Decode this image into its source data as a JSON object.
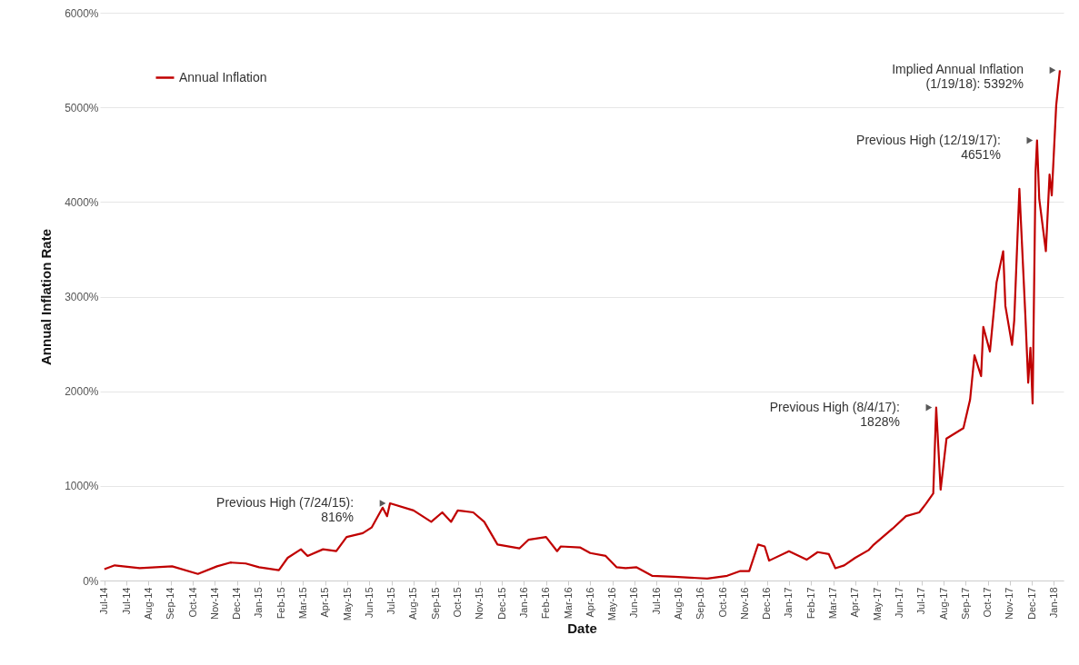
{
  "chart_data": {
    "type": "line",
    "xlabel": "Date",
    "ylabel": "Annual Inflation Rate",
    "x": [
      "2014-07-01",
      "2014-07-15",
      "2014-08-18",
      "2014-10-01",
      "2014-11-05",
      "2014-12-01",
      "2014-12-19",
      "2015-01-09",
      "2015-01-27",
      "2015-02-23",
      "2015-03-07",
      "2015-03-25",
      "2015-04-03",
      "2015-04-24",
      "2015-05-12",
      "2015-05-26",
      "2015-06-17",
      "2015-06-29",
      "2015-07-14",
      "2015-07-20",
      "2015-07-24",
      "2015-08-25",
      "2015-09-18",
      "2015-10-03",
      "2015-10-15",
      "2015-10-24",
      "2015-11-14",
      "2015-11-29",
      "2015-12-17",
      "2016-01-16",
      "2016-01-28",
      "2016-02-21",
      "2016-03-07",
      "2016-03-12",
      "2016-04-07",
      "2016-04-21",
      "2016-05-12",
      "2016-05-27",
      "2016-06-08",
      "2016-06-23",
      "2016-07-14",
      "2016-08-13",
      "2016-09-27",
      "2016-10-24",
      "2016-11-11",
      "2016-11-23",
      "2016-12-05",
      "2016-12-14",
      "2016-12-20",
      "2017-01-16",
      "2017-02-09",
      "2017-02-24",
      "2017-03-11",
      "2017-03-20",
      "2017-04-01",
      "2017-04-16",
      "2017-05-04",
      "2017-05-10",
      "2017-06-06",
      "2017-06-24",
      "2017-07-12",
      "2017-07-21",
      "2017-07-31",
      "2017-08-04",
      "2017-08-10",
      "2017-08-18",
      "2017-09-10",
      "2017-09-19",
      "2017-09-25",
      "2017-10-04",
      "2017-10-07",
      "2017-10-16",
      "2017-10-25",
      "2017-11-03",
      "2017-11-06",
      "2017-11-15",
      "2017-11-18",
      "2017-11-25",
      "2017-12-03",
      "2017-12-07",
      "2017-12-10",
      "2017-12-13",
      "2017-12-17",
      "2017-12-19",
      "2017-12-22",
      "2017-12-31",
      "2018-01-05",
      "2018-01-08",
      "2018-01-14",
      "2018-01-19"
    ],
    "series": [
      {
        "name": "Annual Inflation",
        "color": "#c00000",
        "values": [
          120,
          160,
          130,
          150,
          70,
          150,
          190,
          180,
          140,
          110,
          240,
          330,
          260,
          330,
          310,
          460,
          500,
          560,
          770,
          680,
          816,
          740,
          620,
          720,
          620,
          740,
          720,
          620,
          380,
          340,
          430,
          460,
          310,
          360,
          350,
          290,
          260,
          140,
          130,
          140,
          50,
          40,
          20,
          50,
          100,
          100,
          380,
          360,
          210,
          310,
          220,
          300,
          280,
          130,
          160,
          240,
          320,
          370,
          550,
          680,
          720,
          810,
          920,
          1828,
          960,
          1500,
          1610,
          1910,
          2380,
          2160,
          2680,
          2420,
          3150,
          3480,
          2900,
          2490,
          2750,
          4140,
          2820,
          2090,
          2460,
          1870,
          4320,
          4651,
          4030,
          3480,
          4290,
          4070,
          5020,
          5392
        ]
      }
    ],
    "xlim": [
      "2014-06-25",
      "2018-01-24"
    ],
    "xticks": [
      {
        "value": "2014-07-01",
        "label": "Jul-14"
      },
      {
        "value": "2014-07-31",
        "label": "Jul-14"
      },
      {
        "value": "2014-08-30",
        "label": "Aug-14"
      },
      {
        "value": "2014-09-29",
        "label": "Sep-14"
      },
      {
        "value": "2014-10-29",
        "label": "Oct-14"
      },
      {
        "value": "2014-11-28",
        "label": "Nov-14"
      },
      {
        "value": "2014-12-28",
        "label": "Dec-14"
      },
      {
        "value": "2015-01-27",
        "label": "Jan-15"
      },
      {
        "value": "2015-02-26",
        "label": "Feb-15"
      },
      {
        "value": "2015-03-28",
        "label": "Mar-15"
      },
      {
        "value": "2015-04-27",
        "label": "Apr-15"
      },
      {
        "value": "2015-05-27",
        "label": "May-15"
      },
      {
        "value": "2015-06-26",
        "label": "Jun-15"
      },
      {
        "value": "2015-07-26",
        "label": "Jul-15"
      },
      {
        "value": "2015-08-25",
        "label": "Aug-15"
      },
      {
        "value": "2015-09-24",
        "label": "Sep-15"
      },
      {
        "value": "2015-10-24",
        "label": "Oct-15"
      },
      {
        "value": "2015-11-23",
        "label": "Nov-15"
      },
      {
        "value": "2015-12-23",
        "label": "Dec-15"
      },
      {
        "value": "2016-01-22",
        "label": "Jan-16"
      },
      {
        "value": "2016-02-21",
        "label": "Feb-16"
      },
      {
        "value": "2016-03-22",
        "label": "Mar-16"
      },
      {
        "value": "2016-04-21",
        "label": "Apr-16"
      },
      {
        "value": "2016-05-21",
        "label": "May-16"
      },
      {
        "value": "2016-06-20",
        "label": "Jun-16"
      },
      {
        "value": "2016-07-20",
        "label": "Jul-16"
      },
      {
        "value": "2016-08-19",
        "label": "Aug-16"
      },
      {
        "value": "2016-09-18",
        "label": "Sep-16"
      },
      {
        "value": "2016-10-18",
        "label": "Oct-16"
      },
      {
        "value": "2016-11-17",
        "label": "Nov-16"
      },
      {
        "value": "2016-12-17",
        "label": "Dec-16"
      },
      {
        "value": "2017-01-16",
        "label": "Jan-17"
      },
      {
        "value": "2017-02-15",
        "label": "Feb-17"
      },
      {
        "value": "2017-03-17",
        "label": "Mar-17"
      },
      {
        "value": "2017-04-16",
        "label": "Apr-17"
      },
      {
        "value": "2017-05-16",
        "label": "May-17"
      },
      {
        "value": "2017-06-15",
        "label": "Jun-17"
      },
      {
        "value": "2017-07-15",
        "label": "Jul-17"
      },
      {
        "value": "2017-08-14",
        "label": "Aug-17"
      },
      {
        "value": "2017-09-13",
        "label": "Sep-17"
      },
      {
        "value": "2017-10-13",
        "label": "Oct-17"
      },
      {
        "value": "2017-11-12",
        "label": "Nov-17"
      },
      {
        "value": "2017-12-12",
        "label": "Dec-17"
      },
      {
        "value": "2018-01-11",
        "label": "Jan-18"
      }
    ],
    "ylim": [
      0,
      6000
    ],
    "yticks": [
      {
        "value": 0,
        "label": "0%"
      },
      {
        "value": 1000,
        "label": "1000%"
      },
      {
        "value": 2000,
        "label": "2000%"
      },
      {
        "value": 3000,
        "label": "3000%"
      },
      {
        "value": 4000,
        "label": "4000%"
      },
      {
        "value": 5000,
        "label": "5000%"
      },
      {
        "value": 6000,
        "label": "6000%"
      }
    ],
    "grid": "y",
    "legend": "top left",
    "marker": "none",
    "line_style": "solid",
    "annotations": [
      {
        "text": "Previous High (7/24/15):\n816%",
        "x": "2015-07-24",
        "y": 816
      },
      {
        "text": "Previous High (8/4/17):\n1828%",
        "x": "2017-08-04",
        "y": 1828
      },
      {
        "text": "Previous High (12/19/17):\n4651%",
        "x": "2017-12-19",
        "y": 4651
      },
      {
        "text": "Implied Annual Inflation\n(1/19/18): 5392%",
        "x": "2018-01-19",
        "y": 5392
      }
    ]
  }
}
